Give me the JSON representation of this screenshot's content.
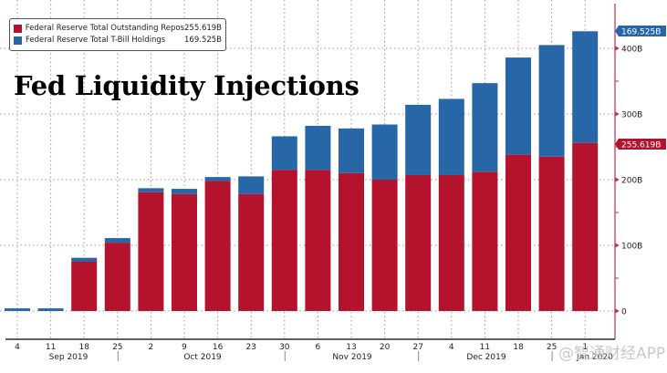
{
  "chart_data": {
    "type": "bar",
    "stacked": true,
    "title": "Fed Liquidity Injections",
    "xlabel": "",
    "ylabel": "",
    "ylim": [
      0,
      450
    ],
    "y_ticks": [
      0,
      100,
      200,
      300,
      400
    ],
    "y_tick_labels": [
      "0",
      "100B",
      "200B",
      "300B",
      "400B"
    ],
    "y_axis_side": "right",
    "grid": true,
    "legend_placement": "top-left",
    "categories": [
      "4",
      "11",
      "18",
      "25",
      "2",
      "9",
      "16",
      "23",
      "30",
      "6",
      "13",
      "20",
      "27",
      "4",
      "11",
      "18",
      "25",
      "1"
    ],
    "month_labels": [
      {
        "label": "Sep 2019",
        "after_index": 1
      },
      {
        "label": "Oct 2019",
        "after_index": 5
      },
      {
        "label": "Nov 2019",
        "after_index": 10
      },
      {
        "label": "Dec 2019",
        "after_index": 14
      },
      {
        "label": "Jan 2020",
        "after_index": 17
      }
    ],
    "month_separators_after_index": [
      3,
      8,
      12,
      16
    ],
    "series": [
      {
        "name": "Federal Reserve Total Outstanding Repos",
        "color": "#b5122e",
        "last_value_label": "255.619B",
        "values": [
          0,
          0,
          75,
          104,
          181,
          178,
          198,
          178,
          215,
          215,
          210,
          200,
          207,
          207,
          212,
          238,
          235,
          256
        ]
      },
      {
        "name": "Federal Reserve Total T-Bill Holdings",
        "color": "#2766a7",
        "last_value_label": "169.525B",
        "values": [
          4,
          4,
          6,
          7,
          6,
          8,
          6,
          27,
          51,
          67,
          68,
          84,
          107,
          116,
          135,
          148,
          170,
          170
        ]
      }
    ]
  },
  "legend": {
    "items": [
      {
        "label": "Federal Reserve Total Outstanding Repos",
        "value": "255.619B",
        "color": "#b5122e"
      },
      {
        "label": "Federal Reserve Total T-Bill Holdings",
        "value": "169.525B",
        "color": "#2766a7"
      }
    ]
  },
  "title": "Fed Liquidity Injections",
  "watermark": "@智通财经APP",
  "colors": {
    "axis_line": "#c0304a",
    "grid": "#999999"
  }
}
